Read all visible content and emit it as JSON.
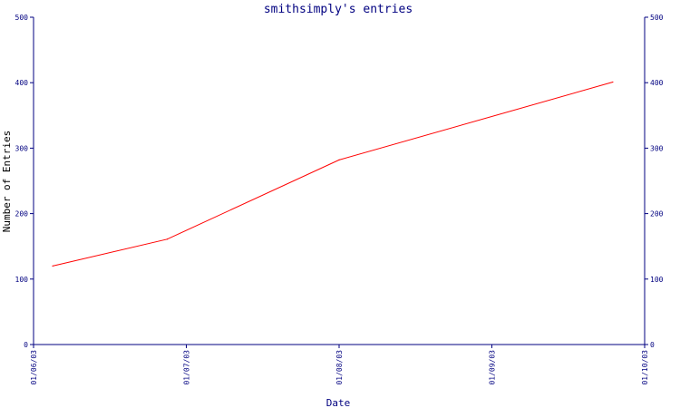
{
  "colors": {
    "axis": "#000080",
    "series": "#ff0000",
    "ylabel_text": "#000000",
    "background": "#ffffff"
  },
  "chart_data": {
    "type": "line",
    "title": "smithsimply's entries",
    "xlabel": "Date",
    "ylabel": "Number of Entries",
    "ylim": [
      0,
      500
    ],
    "yticks": [
      "0",
      "100",
      "200",
      "300",
      "400",
      "500"
    ],
    "xlim": [
      "2003-01-06",
      "2003-01-10"
    ],
    "xticks": [
      {
        "label": "01/06/03",
        "x": "2003-01-06"
      },
      {
        "label": "01/07/03",
        "x": "2003-01-07"
      },
      {
        "label": "01/08/03",
        "x": "2003-01-08"
      },
      {
        "label": "01/09/03",
        "x": "2003-01-09"
      },
      {
        "label": "01/10/03",
        "x": "2003-01-10"
      }
    ],
    "grid": false,
    "secondary_y_axis": true,
    "series": [
      {
        "x": [
          "2003-01-06T03:00",
          "2003-01-06T21:00",
          "2003-01-08T00:00",
          "2003-01-09T19:00"
        ],
        "values": [
          120,
          161,
          282,
          401
        ]
      }
    ]
  }
}
